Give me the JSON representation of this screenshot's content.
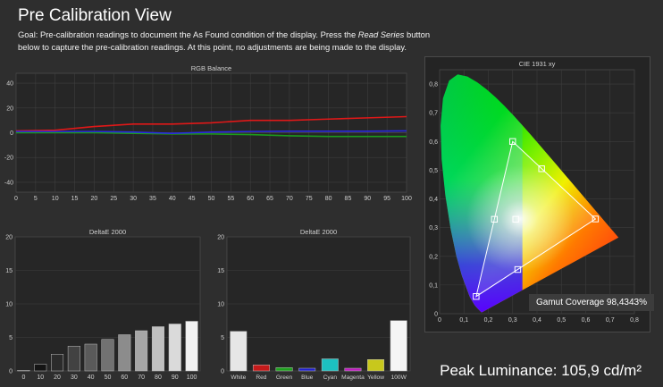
{
  "header": {
    "title": "Pre Calibration View",
    "goal_prefix": "Goal: Pre-calibration readings to document the As Found condition of the display. Press the ",
    "goal_emphasis": "Read Series",
    "goal_suffix": " button below to capture the pre-calibration readings. At this point, no adjustments are being made to the display."
  },
  "gamut_coverage": "Gamut Coverage 98,4343%",
  "peak_luminance": "Peak Luminance: 105,9 cd/m²",
  "colors": {
    "red": "#e01818",
    "green": "#1c9b1c",
    "blue": "#2a2ae0",
    "bar_white": "#e6e6e6"
  },
  "chart_data": [
    {
      "type": "line",
      "title": "RGB Balance",
      "x": [
        0,
        10,
        20,
        30,
        40,
        50,
        60,
        70,
        80,
        90,
        100
      ],
      "xticks": [
        0,
        5,
        10,
        15,
        20,
        25,
        30,
        35,
        40,
        45,
        50,
        55,
        60,
        65,
        70,
        75,
        80,
        85,
        90,
        95,
        100
      ],
      "yticks": [
        40,
        20,
        0,
        -20,
        -40
      ],
      "xlim": [
        0,
        100
      ],
      "ylim": [
        -48,
        48
      ],
      "grid": true,
      "series": [
        {
          "color": "red",
          "values": [
            1.5,
            2,
            5,
            7,
            7,
            8,
            10,
            10,
            11,
            12,
            13
          ]
        },
        {
          "color": "green",
          "values": [
            0,
            0,
            0,
            -0.5,
            -1,
            -1,
            -1.5,
            -2.5,
            -3,
            -3,
            -3
          ]
        },
        {
          "color": "blue",
          "values": [
            1,
            1,
            1,
            0.5,
            -0.5,
            0.5,
            1,
            1.2,
            1.2,
            1.2,
            1.5
          ]
        }
      ]
    },
    {
      "type": "bar",
      "title": "DeltaE 2000",
      "categories": [
        "0",
        "10",
        "20",
        "30",
        "40",
        "50",
        "60",
        "70",
        "80",
        "90",
        "100"
      ],
      "values": [
        0.1,
        1,
        2.5,
        3.7,
        4,
        4.7,
        5.4,
        6,
        6.6,
        7,
        7.4
      ],
      "bar_colors": [
        "#000000",
        "#141414",
        "#2b2b2b",
        "#424242",
        "#5a5a5a",
        "#727272",
        "#8c8c8c",
        "#a6a6a6",
        "#c0c0c0",
        "#dadada",
        "#f2f2f2"
      ],
      "yticks": [
        20,
        15,
        10,
        5,
        0
      ],
      "ylim": [
        0,
        20
      ],
      "grid": true
    },
    {
      "type": "bar",
      "title": "DeltaE 2000",
      "categories": [
        "White",
        "Red",
        "Green",
        "Blue",
        "Cyan",
        "Magenta",
        "Yellow",
        "100W"
      ],
      "values": [
        5.9,
        0.9,
        0.5,
        0.4,
        1.8,
        0.4,
        1.7,
        7.5
      ],
      "bar_colors": [
        "#e6e6e6",
        "#c41a1a",
        "#1ea01e",
        "#2020cc",
        "#1cc0c0",
        "#c01cc0",
        "#c8c81c",
        "#f5f5f5"
      ],
      "yticks": [
        20,
        15,
        10,
        5,
        0
      ],
      "ylim": [
        0,
        20
      ],
      "grid": true
    },
    {
      "type": "scatter",
      "title": "CIE 1931 xy",
      "xticks": [
        "0",
        "0,1",
        "0,2",
        "0,3",
        "0,4",
        "0,5",
        "0,6",
        "0,7",
        "0,8"
      ],
      "yticks": [
        "0,8",
        "0,7",
        "0,6",
        "0,5",
        "0,4",
        "0,3",
        "0,2",
        "0,1",
        "0"
      ],
      "xlim": [
        0,
        0.8
      ],
      "ylim": [
        0,
        0.85
      ],
      "grid": true,
      "targets": {
        "red": [
          0.64,
          0.33
        ],
        "green": [
          0.3,
          0.6
        ],
        "blue": [
          0.15,
          0.06
        ],
        "white": [
          0.3127,
          0.329
        ]
      },
      "measured": [
        {
          "name": "red",
          "x": 0.64,
          "y": 0.33
        },
        {
          "name": "green",
          "x": 0.3,
          "y": 0.6
        },
        {
          "name": "blue",
          "x": 0.15,
          "y": 0.06
        },
        {
          "name": "white",
          "x": 0.3127,
          "y": 0.329
        },
        {
          "name": "cyan",
          "x": 0.225,
          "y": 0.329
        },
        {
          "name": "magenta",
          "x": 0.321,
          "y": 0.154
        },
        {
          "name": "yellow",
          "x": 0.419,
          "y": 0.505
        }
      ]
    }
  ]
}
